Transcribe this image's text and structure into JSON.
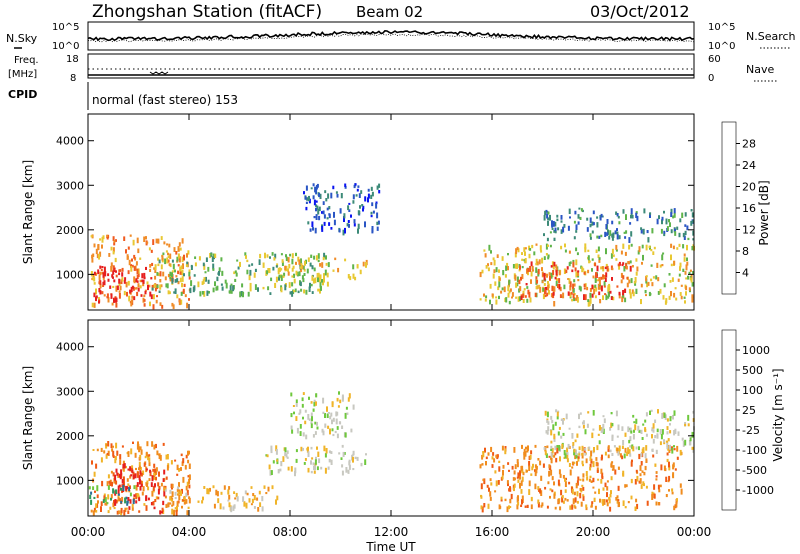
{
  "header": {
    "title": "Zhongshan Station (fitACF)",
    "beam": "Beam 02",
    "date": "03/Oct/2012"
  },
  "noise_panel": {
    "left_label": "N.Sky",
    "right_label": "N.Search",
    "ticks_left": [
      "10^5",
      "10^0"
    ],
    "ticks_right": [
      "10^5",
      "10^0"
    ]
  },
  "freq_panel": {
    "left_label_1": "Freq.",
    "left_label_2": "[MHz]",
    "right_label": "Nave",
    "ticks_left": [
      "18",
      "8"
    ],
    "ticks_right": [
      "60",
      "0"
    ]
  },
  "cpid_panel": {
    "label": "CPID",
    "mode": "normal (fast stereo) 153"
  },
  "chart_data": [
    {
      "type": "heatmap",
      "name": "power",
      "ylabel": "Slant Range [km]",
      "yticks": [
        "1000",
        "2000",
        "3000",
        "4000"
      ],
      "ylim": [
        200,
        4600
      ],
      "xlim": [
        0,
        24
      ],
      "colorbar_label": "Power [dB]",
      "colorbar_ticks": [
        "4",
        "8",
        "12",
        "16",
        "20",
        "24",
        "28"
      ],
      "colorbar_colors": [
        "#0a14f0",
        "#2a55c4",
        "#3c8a78",
        "#5fb44a",
        "#e8c832",
        "#f08c28",
        "#f05a1e",
        "#e61e1e"
      ],
      "regions": [
        {
          "t": [
            0.1,
            4.0
          ],
          "r": [
            300,
            1900
          ],
          "level": 5
        },
        {
          "t": [
            0.2,
            2.5
          ],
          "r": [
            400,
            1200
          ],
          "level": 7
        },
        {
          "t": [
            2.5,
            9.5
          ],
          "r": [
            600,
            1500
          ],
          "level": 3
        },
        {
          "t": [
            7.5,
            11.0
          ],
          "r": [
            900,
            1400
          ],
          "level": 4
        },
        {
          "t": [
            8.5,
            11.5
          ],
          "r": [
            2000,
            3100
          ],
          "level": 1
        },
        {
          "t": [
            15.5,
            24.0
          ],
          "r": [
            400,
            1700
          ],
          "level": 4
        },
        {
          "t": [
            17.0,
            21.5
          ],
          "r": [
            500,
            1300
          ],
          "level": 6
        },
        {
          "t": [
            18.0,
            24.0
          ],
          "r": [
            1800,
            2500
          ],
          "level": 2
        }
      ]
    },
    {
      "type": "heatmap",
      "name": "velocity",
      "ylabel": "Slant Range [km]",
      "yticks": [
        "1000",
        "2000",
        "3000",
        "4000"
      ],
      "ylim": [
        200,
        4600
      ],
      "xlim": [
        0,
        24
      ],
      "xticks": [
        "00:00",
        "04:00",
        "08:00",
        "12:00",
        "16:00",
        "20:00",
        "00:00"
      ],
      "xlabel": "Time UT",
      "colorbar_label": "Velocity [m s⁻¹]",
      "colorbar_ticks": [
        "1000",
        "500",
        "100",
        "25",
        "-25",
        "-100",
        "-500",
        "-1000"
      ],
      "colorbar_colors": [
        "#1e3ca0",
        "#2a6e96",
        "#2e9a5a",
        "#6ec83c",
        "#c8c8c0",
        "#f0b428",
        "#f08c1e",
        "#f05a14",
        "#e61e1e"
      ],
      "regions": [
        {
          "t": [
            0.1,
            4.0
          ],
          "r": [
            300,
            1900
          ],
          "level": 6
        },
        {
          "t": [
            1.0,
            3.0
          ],
          "r": [
            300,
            1400
          ],
          "level": 8
        },
        {
          "t": [
            3.0,
            7.5
          ],
          "r": [
            400,
            900
          ],
          "level": 5
        },
        {
          "t": [
            7.0,
            11.0
          ],
          "r": [
            1200,
            1800
          ],
          "level": 4
        },
        {
          "t": [
            8.0,
            10.5
          ],
          "r": [
            2000,
            3000
          ],
          "level": 4
        },
        {
          "t": [
            15.5,
            23.5
          ],
          "r": [
            400,
            1800
          ],
          "level": 6
        },
        {
          "t": [
            18.0,
            24.0
          ],
          "r": [
            1600,
            2600
          ],
          "level": 4
        },
        {
          "t": [
            0.0,
            2.0
          ],
          "r": [
            500,
            900
          ],
          "level": 2
        }
      ]
    }
  ]
}
